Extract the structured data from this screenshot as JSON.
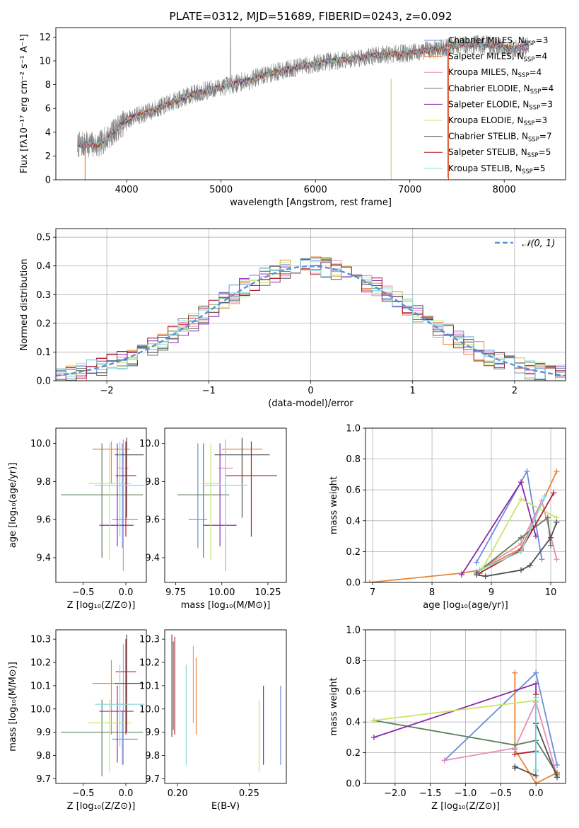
{
  "colors": [
    "#6a8fdb",
    "#e88535",
    "#e88bb8",
    "#5c7f5a",
    "#8a2aad",
    "#c8e66a",
    "#505050",
    "#b41f2a",
    "#85d8e0"
  ],
  "chart_data": [
    {
      "id": "spectrum",
      "type": "line",
      "title": "PLATE=0312, MJD=51689, FIBERID=0243, z=0.092",
      "xlabel": "wavelength [Angstrom, rest frame]",
      "ylabel": "Flux [fλ10⁻¹⁷ erg cm⁻² s⁻¹ A⁻¹]",
      "xlim": [
        3250,
        8650
      ],
      "ylim": [
        0,
        12.8
      ],
      "xticks": [
        4000,
        5000,
        6000,
        7000,
        8000
      ],
      "yticks": [
        0,
        2,
        4,
        6,
        8,
        10,
        12
      ],
      "grid": false,
      "legend_position": "lower-right",
      "data_trend": {
        "x": [
          3480,
          3600,
          3700,
          3800,
          3900,
          4000,
          4100,
          4200,
          4300,
          4500,
          4700,
          4900,
          5100,
          5300,
          5500,
          5700,
          5900,
          6100,
          6300,
          6500,
          6700,
          6900,
          7100,
          7300,
          7500,
          7700,
          7900,
          8100,
          8260
        ],
        "y": [
          2.9,
          3.0,
          2.9,
          3.6,
          4.3,
          5.0,
          5.4,
          5.6,
          5.9,
          6.6,
          7.2,
          7.6,
          8.0,
          8.4,
          8.9,
          9.3,
          9.6,
          9.9,
          10.1,
          10.3,
          10.5,
          10.6,
          10.8,
          11.0,
          11.3,
          11.4,
          11.3,
          11.0,
          11.2
        ]
      },
      "series": [
        {
          "name": "Chabrier MILES, N",
          "nsub": "SSP",
          "ntext": "=3"
        },
        {
          "name": "Salpeter MILES, N",
          "nsub": "SSP",
          "ntext": "=4"
        },
        {
          "name": "Kroupa MILES, N",
          "nsub": "SSP",
          "ntext": "=4"
        },
        {
          "name": "Chabrier ELODIE, N",
          "nsub": "SSP",
          "ntext": "=4"
        },
        {
          "name": "Salpeter ELODIE, N",
          "nsub": "SSP",
          "ntext": "=3"
        },
        {
          "name": "Kroupa ELODIE, N",
          "nsub": "SSP",
          "ntext": "=3"
        },
        {
          "name": "Chabrier STELIB, N",
          "nsub": "SSP",
          "ntext": "=7"
        },
        {
          "name": "Salpeter STELIB, N",
          "nsub": "SSP",
          "ntext": "=5"
        },
        {
          "name": "Kroupa STELIB, N",
          "nsub": "SSP",
          "ntext": "=5"
        }
      ]
    },
    {
      "id": "residuals",
      "type": "line",
      "xlabel": "(data-model)/error",
      "ylabel": "Normed distribution",
      "xlim": [
        -2.5,
        2.5
      ],
      "ylim": [
        0,
        0.53
      ],
      "xticks": [
        -2,
        -1,
        0,
        1,
        2
      ],
      "yticks": [
        0.0,
        0.1,
        0.2,
        0.3,
        0.4,
        0.5
      ],
      "grid": true,
      "legend_position": "upper-right",
      "normal_curve_label": "𝒩(0, 1)",
      "bin_width": 0.1
    },
    {
      "id": "age_vs_z",
      "type": "scatter",
      "xlabel": "Z [log₁₀(Z/Z⊙)]",
      "ylabel": "age  [log₁₀(age/yr)]",
      "xlim": [
        -0.82,
        0.24
      ],
      "ylim": [
        9.27,
        10.08
      ],
      "xticks": [
        -0.5,
        0.0
      ],
      "yticks": [
        9.4,
        9.6,
        9.8,
        10.0
      ],
      "points": [
        {
          "x": -0.04,
          "xerr": [
            0.12,
            0.18
          ],
          "y": 9.6,
          "yerr": [
            0.15,
            0.4
          ]
        },
        {
          "x": -0.17,
          "xerr": [
            0.22,
            0.22
          ],
          "y": 9.97,
          "yerr": [
            0.18,
            0.04
          ]
        },
        {
          "x": -0.03,
          "xerr": [
            0.06,
            0.06
          ],
          "y": 9.87,
          "yerr": [
            0.54,
            0.15
          ]
        },
        {
          "x": -0.28,
          "xerr": [
            0.48,
            0.48
          ],
          "y": 9.73,
          "yerr": [
            0.33,
            0.27
          ]
        },
        {
          "x": -0.1,
          "xerr": [
            0.21,
            0.19
          ],
          "y": 9.57,
          "yerr": [
            0.11,
            0.43
          ]
        },
        {
          "x": -0.19,
          "xerr": [
            0.25,
            0.25
          ],
          "y": 9.79,
          "yerr": [
            0.4,
            0.21
          ]
        },
        {
          "x": 0.01,
          "xerr": [
            0.14,
            0.2
          ],
          "y": 9.94,
          "yerr": [
            0.33,
            0.09
          ]
        },
        {
          "x": -0.0,
          "xerr": [
            0.12,
            0.12
          ],
          "y": 9.83,
          "yerr": [
            0.32,
            0.18
          ]
        },
        {
          "x": -0.07,
          "xerr": [
            0.29,
            0.29
          ],
          "y": 9.78,
          "yerr": [
            0.27,
            0.23
          ]
        }
      ]
    },
    {
      "id": "age_vs_mass",
      "type": "scatter",
      "xlabel": "mass [log₁₀(M/M⊙)]",
      "ylabel": "",
      "xlim": [
        9.69,
        10.35
      ],
      "ylim": [
        9.27,
        10.08
      ],
      "xticks": [
        9.75,
        10.0,
        10.25
      ],
      "yticks": [
        9.4,
        9.6,
        9.8,
        10.0
      ],
      "points": [
        {
          "x": 9.87,
          "xerr": [
            0.05,
            0.05
          ],
          "y": 9.6,
          "yerr": [
            0.15,
            0.4
          ]
        },
        {
          "x": 10.11,
          "xerr": [
            0.11,
            0.11
          ],
          "y": 9.97,
          "yerr": [
            0.18,
            0.04
          ]
        },
        {
          "x": 10.02,
          "xerr": [
            0.04,
            0.04
          ],
          "y": 9.87,
          "yerr": [
            0.54,
            0.15
          ]
        },
        {
          "x": 9.9,
          "xerr": [
            0.14,
            0.14
          ],
          "y": 9.73,
          "yerr": [
            0.33,
            0.27
          ]
        },
        {
          "x": 9.99,
          "xerr": [
            0.09,
            0.09
          ],
          "y": 9.57,
          "yerr": [
            0.11,
            0.43
          ]
        },
        {
          "x": 9.94,
          "xerr": [
            0.05,
            0.05
          ],
          "y": 9.79,
          "yerr": [
            0.4,
            0.21
          ]
        },
        {
          "x": 10.11,
          "xerr": [
            0.15,
            0.15
          ],
          "y": 9.94,
          "yerr": [
            0.33,
            0.09
          ]
        },
        {
          "x": 10.16,
          "xerr": [
            0.14,
            0.14
          ],
          "y": 9.83,
          "yerr": [
            0.32,
            0.18
          ]
        },
        {
          "x": 10.02,
          "xerr": [
            0.12,
            0.12
          ],
          "y": 9.78,
          "yerr": [
            0.27,
            0.23
          ]
        }
      ]
    },
    {
      "id": "weights_vs_age",
      "type": "line",
      "xlabel": "age  [log₁₀(age/yr)]",
      "ylabel": "mass weight",
      "xlim": [
        6.88,
        10.25
      ],
      "ylim": [
        0,
        1.0
      ],
      "xticks": [
        7,
        8,
        9,
        10
      ],
      "yticks": [
        0.0,
        0.2,
        0.4,
        0.6,
        0.8,
        1.0
      ],
      "grid": true,
      "series": [
        {
          "x": [
            8.75,
            9.6,
            9.85
          ],
          "y": [
            0.13,
            0.72,
            0.15
          ]
        },
        {
          "x": [
            6.95,
            8.5,
            8.8,
            9.5,
            10.1
          ],
          "y": [
            0.0,
            0.06,
            0.08,
            0.22,
            0.72
          ]
        },
        {
          "x": [
            8.75,
            9.5,
            9.85,
            10.1
          ],
          "y": [
            0.07,
            0.25,
            0.53,
            0.15
          ]
        },
        {
          "x": [
            8.75,
            9.5,
            9.95,
            10.0
          ],
          "y": [
            0.06,
            0.29,
            0.42,
            0.24
          ]
        },
        {
          "x": [
            8.5,
            9.5,
            9.75
          ],
          "y": [
            0.05,
            0.65,
            0.3
          ]
        },
        {
          "x": [
            8.85,
            9.5,
            10.1
          ],
          "y": [
            0.09,
            0.54,
            0.42
          ]
        },
        {
          "x": [
            8.75,
            8.9,
            9.5,
            9.65,
            10.0,
            10.1
          ],
          "y": [
            0.05,
            0.04,
            0.08,
            0.11,
            0.29,
            0.39
          ]
        },
        {
          "x": [
            8.8,
            9.5,
            10.05
          ],
          "y": [
            0.06,
            0.21,
            0.58
          ]
        },
        {
          "x": [
            8.8,
            9.5,
            9.9
          ],
          "y": [
            0.08,
            0.2,
            0.56
          ]
        }
      ]
    },
    {
      "id": "mass_vs_z",
      "type": "scatter",
      "xlabel": "Z [log₁₀(Z/Z⊙)]",
      "ylabel": "mass [log₁₀(M/M⊙)]",
      "xlim": [
        -0.82,
        0.24
      ],
      "ylim": [
        9.68,
        10.34
      ],
      "xticks": [
        -0.5,
        0.0
      ],
      "yticks": [
        9.7,
        9.8,
        9.9,
        10.0,
        10.1,
        10.2,
        10.3
      ],
      "points": [
        {
          "x": -0.04,
          "xerr": [
            0.12,
            0.18
          ],
          "y": 9.87,
          "yerr": [
            0.11,
            0.12
          ]
        },
        {
          "x": -0.17,
          "xerr": [
            0.22,
            0.22
          ],
          "y": 10.11,
          "yerr": [
            0.22,
            0.1
          ]
        },
        {
          "x": -0.03,
          "xerr": [
            0.06,
            0.06
          ],
          "y": 10.02,
          "yerr": [
            0.26,
            0.26
          ]
        },
        {
          "x": -0.28,
          "xerr": [
            0.48,
            0.48
          ],
          "y": 9.9,
          "yerr": [
            0.19,
            0.14
          ]
        },
        {
          "x": -0.1,
          "xerr": [
            0.21,
            0.19
          ],
          "y": 9.99,
          "yerr": [
            0.22,
            0.11
          ]
        },
        {
          "x": -0.19,
          "xerr": [
            0.25,
            0.25
          ],
          "y": 9.94,
          "yerr": [
            0.21,
            0.1
          ]
        },
        {
          "x": 0.01,
          "xerr": [
            0.14,
            0.2
          ],
          "y": 10.11,
          "yerr": [
            0.21,
            0.21
          ]
        },
        {
          "x": -0.0,
          "xerr": [
            0.12,
            0.12
          ],
          "y": 10.16,
          "yerr": [
            0.27,
            0.14
          ]
        },
        {
          "x": -0.07,
          "xerr": [
            0.29,
            0.29
          ],
          "y": 10.02,
          "yerr": [
            0.18,
            0.17
          ]
        }
      ]
    },
    {
      "id": "mass_vs_ebv",
      "type": "scatter",
      "xlabel": "E(B-V)",
      "ylabel": "",
      "xlim": [
        0.191,
        0.276
      ],
      "ylim": [
        9.68,
        10.34
      ],
      "xticks": [
        0.2,
        0.25
      ],
      "yticks": [
        9.7,
        9.8,
        9.9,
        10.0,
        10.1,
        10.2,
        10.3
      ],
      "points": [
        {
          "x": 0.272,
          "y": 9.93,
          "yerr": [
            0.17,
            0.17
          ]
        },
        {
          "x": 0.213,
          "y": 10.05,
          "yerr": [
            0.16,
            0.17
          ]
        },
        {
          "x": 0.211,
          "y": 10.1,
          "yerr": [
            0.16,
            0.17
          ]
        },
        {
          "x": 0.197,
          "y": 10.1,
          "yerr": [
            0.19,
            0.19
          ]
        },
        {
          "x": 0.26,
          "y": 9.93,
          "yerr": [
            0.17,
            0.17
          ]
        },
        {
          "x": 0.257,
          "y": 9.89,
          "yerr": [
            0.16,
            0.15
          ]
        },
        {
          "x": 0.196,
          "y": 10.1,
          "yerr": [
            0.22,
            0.22
          ]
        },
        {
          "x": 0.198,
          "y": 10.1,
          "yerr": [
            0.21,
            0.21
          ]
        },
        {
          "x": 0.206,
          "y": 9.98,
          "yerr": [
            0.22,
            0.21
          ]
        }
      ]
    },
    {
      "id": "weights_vs_z",
      "type": "line",
      "xlabel": "Z [log₁₀(Z/Z⊙)]",
      "ylabel": "mass weight",
      "xlim": [
        -2.42,
        0.42
      ],
      "ylim": [
        0,
        1.0
      ],
      "xticks": [
        -2.0,
        -1.5,
        -1.0,
        -0.5,
        0.0
      ],
      "yticks": [
        0.0,
        0.2,
        0.4,
        0.6,
        0.8,
        1.0
      ],
      "grid": true,
      "series": [
        {
          "x": [
            -1.3,
            0.0,
            0.3
          ],
          "y": [
            0.15,
            0.72,
            0.12
          ]
        },
        {
          "x": [
            -0.3,
            -0.3,
            0.0,
            0.3
          ],
          "y": [
            0.72,
            0.22,
            0.0,
            0.07
          ]
        },
        {
          "x": [
            -1.3,
            -0.3,
            0.0,
            0.3
          ],
          "y": [
            0.15,
            0.23,
            0.53,
            0.05
          ]
        },
        {
          "x": [
            -2.3,
            -0.3,
            0.0,
            0.3
          ],
          "y": [
            0.41,
            0.25,
            0.28,
            0.06
          ]
        },
        {
          "x": [
            -2.3,
            0.0,
            0.0
          ],
          "y": [
            0.3,
            0.65,
            0.05
          ]
        },
        {
          "x": [
            -2.3,
            0.0,
            0.0
          ],
          "y": [
            0.41,
            0.54,
            0.09
          ]
        },
        {
          "x": [
            -0.3,
            -0.3,
            0.0,
            0.0,
            0.3
          ],
          "y": [
            0.1,
            0.11,
            0.05,
            0.39,
            0.04
          ]
        },
        {
          "x": [
            -0.3,
            0.0,
            0.0
          ],
          "y": [
            0.19,
            0.21,
            0.58
          ]
        },
        {
          "x": [
            0.0,
            0.0,
            0.0
          ],
          "y": [
            0.08,
            0.2,
            0.56
          ]
        }
      ]
    }
  ]
}
